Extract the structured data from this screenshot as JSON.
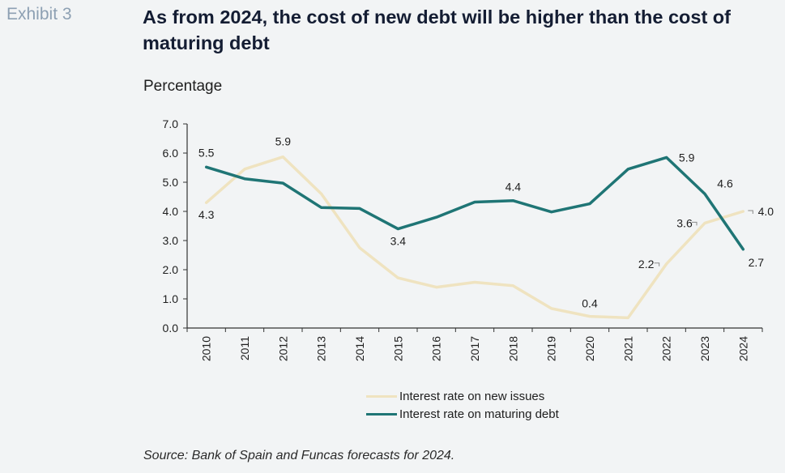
{
  "header": {
    "exhibit": "Exhibit 3",
    "title": "As from 2024, the cost of new debt will be higher than the cost of maturing debt"
  },
  "source": "Source: Bank of Spain and Funcas forecasts for 2024.",
  "colors": {
    "new_issues": "#efe3c0",
    "maturing": "#1f7575",
    "axis": "#333333"
  },
  "chart_data": {
    "type": "line",
    "ylabel": "Percentage",
    "ylim": [
      0,
      7
    ],
    "yticks": [
      "0.0",
      "1.0",
      "2.0",
      "3.0",
      "4.0",
      "5.0",
      "6.0",
      "7.0"
    ],
    "categories": [
      "2010",
      "2011",
      "2012",
      "2013",
      "2014",
      "2015",
      "2016",
      "2017",
      "2018",
      "2019",
      "2020",
      "2021",
      "2022",
      "2023",
      "2024"
    ],
    "legend_position": "bottom",
    "grid": false,
    "series": [
      {
        "name": "Interest rate on new issues",
        "values": [
          4.3,
          5.45,
          5.87,
          4.6,
          2.75,
          1.72,
          1.4,
          1.57,
          1.45,
          0.67,
          0.4,
          0.35,
          2.2,
          3.6,
          4.0
        ],
        "labels": {
          "0": "4.3",
          "2": "5.9",
          "10": "0.4",
          "12": "2.2",
          "13": "3.6",
          "14": "4.0"
        }
      },
      {
        "name": "Interest rate on maturing debt",
        "values": [
          5.52,
          5.12,
          4.97,
          4.13,
          4.1,
          3.4,
          3.8,
          4.32,
          4.37,
          3.98,
          4.26,
          5.45,
          5.85,
          4.6,
          2.7
        ],
        "labels": {
          "0": "5.5",
          "5": "3.4",
          "8": "4.4",
          "12": "5.9",
          "13": "4.6",
          "14": "2.7"
        }
      }
    ]
  }
}
